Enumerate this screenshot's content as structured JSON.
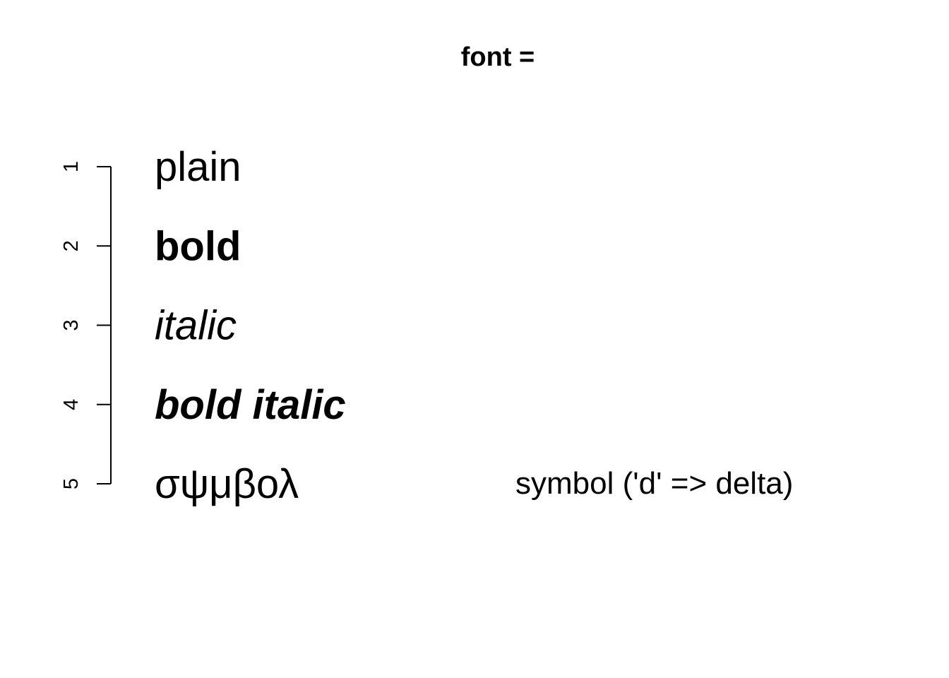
{
  "chart_data": {
    "type": "table",
    "title": "font =",
    "xlabel": "",
    "ylabel": "",
    "y_axis": {
      "side": "left",
      "reversed": true,
      "range": [
        1,
        5
      ],
      "ticks": [
        1,
        2,
        3,
        4,
        5
      ],
      "tick_labels": [
        "1",
        "2",
        "3",
        "4",
        "5"
      ],
      "label_orientation": "rotated"
    },
    "grid": false,
    "rows": [
      {
        "font": 1,
        "label": "plain",
        "style": "plain"
      },
      {
        "font": 2,
        "label": "bold",
        "style": "bold"
      },
      {
        "font": 3,
        "label": "italic",
        "style": "italic"
      },
      {
        "font": 4,
        "label": "bold italic",
        "style": "bold-italic"
      },
      {
        "font": 5,
        "label": "σψμβολ",
        "style": "symbol",
        "note": "symbol ('d' => delta)"
      }
    ]
  }
}
